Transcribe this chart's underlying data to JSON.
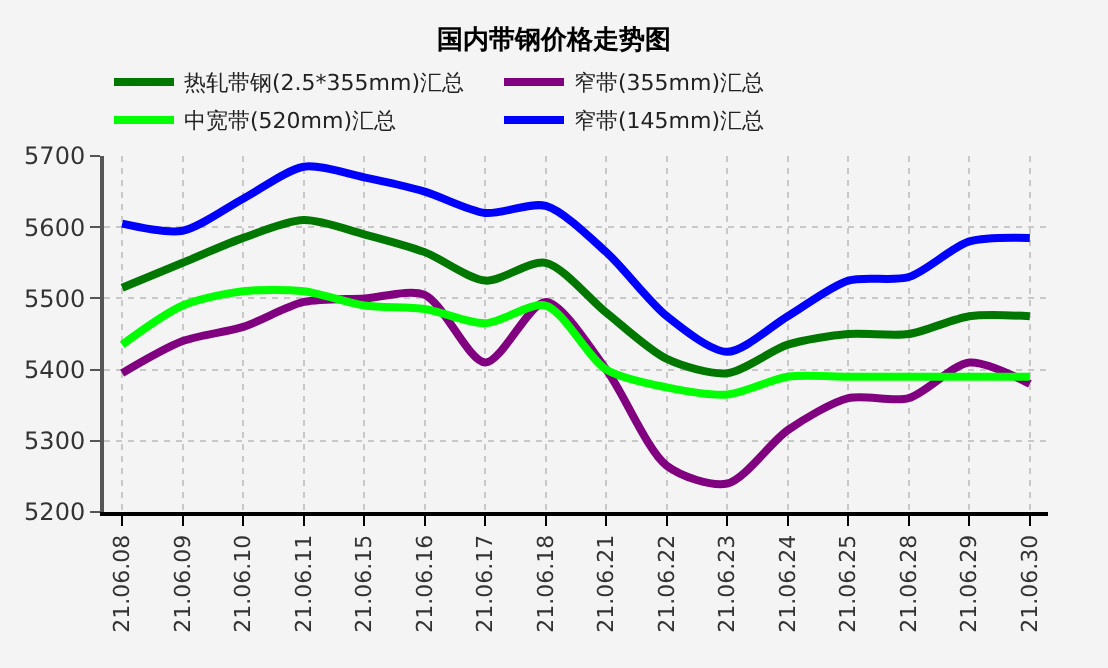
{
  "chart_data": {
    "type": "line",
    "title": "国内带钢价格走势图",
    "categories": [
      "21.06.08",
      "21.06.09",
      "21.06.10",
      "21.06.11",
      "21.06.15",
      "21.06.16",
      "21.06.17",
      "21.06.18",
      "21.06.21",
      "21.06.22",
      "21.06.23",
      "21.06.24",
      "21.06.25",
      "21.06.28",
      "21.06.29",
      "21.06.30"
    ],
    "series": [
      {
        "name": "热轧带钢(2.5*355mm)汇总",
        "color": "#007800",
        "values": [
          5515,
          5550,
          5585,
          5610,
          5590,
          5565,
          5525,
          5550,
          5480,
          5415,
          5395,
          5435,
          5450,
          5450,
          5475,
          5475
        ]
      },
      {
        "name": "窄带(355mm)汇总",
        "color": "#800080",
        "values": [
          5395,
          5440,
          5460,
          5495,
          5500,
          5505,
          5410,
          5495,
          5400,
          5265,
          5240,
          5315,
          5360,
          5360,
          5410,
          5380
        ]
      },
      {
        "name": "中宽带(520mm)汇总",
        "color": "#00ff00",
        "values": [
          5435,
          5490,
          5510,
          5510,
          5490,
          5485,
          5465,
          5490,
          5400,
          5375,
          5365,
          5390,
          5390,
          5390,
          5390,
          5390
        ]
      },
      {
        "name": "窄带(145mm)汇总",
        "color": "#0000ff",
        "values": [
          5605,
          5595,
          5640,
          5685,
          5670,
          5650,
          5620,
          5630,
          5565,
          5475,
          5425,
          5475,
          5525,
          5530,
          5580,
          5585
        ]
      }
    ],
    "ylim": [
      5200,
      5700
    ],
    "yticks": [
      5200,
      5300,
      5400,
      5500,
      5600,
      5700
    ],
    "grid": true,
    "legend": "top",
    "marker": "none",
    "line_style": "solid"
  }
}
